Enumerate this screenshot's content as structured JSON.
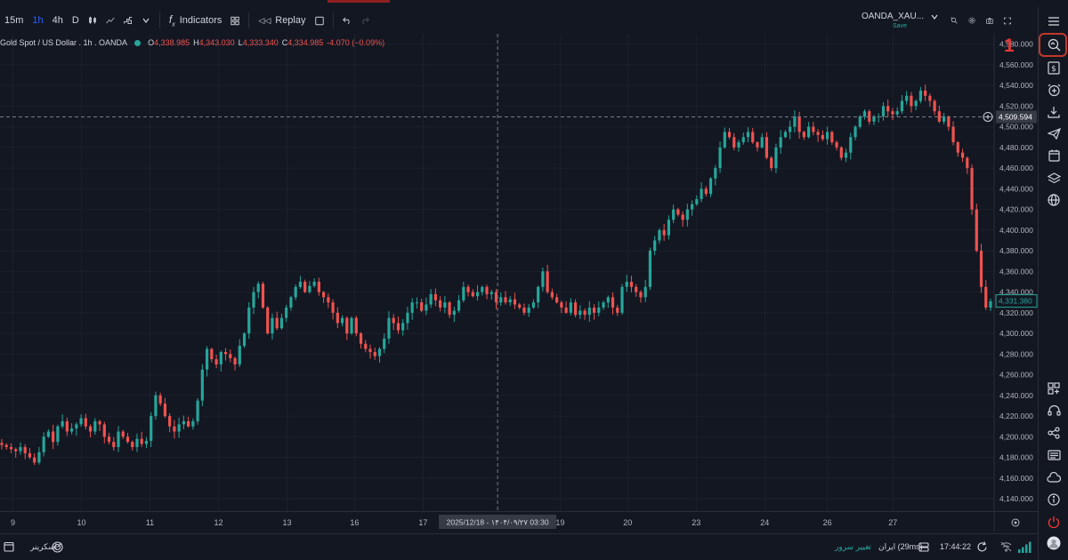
{
  "toolbar": {
    "intervals": [
      "15m",
      "1h",
      "4h",
      "D"
    ],
    "active_interval": "1h",
    "indicators_label": "Indicators",
    "replay_label": "Replay"
  },
  "symbol": {
    "name": "OANDA_XAU...",
    "save_label": "Save"
  },
  "legend": {
    "title": "Gold Spot / US Dollar . 1h . OANDA",
    "o_label": "O",
    "o_value": "4,338.985",
    "h_label": "H",
    "h_value": "4,343.030",
    "l_label": "L",
    "l_value": "4,333.340",
    "c_label": "C",
    "c_value": "4,334.985",
    "change": "-4.070 (−0.09%)"
  },
  "callout": {
    "number": "1"
  },
  "chart_data": {
    "type": "candlestick",
    "y_ticks": [
      4140,
      4160,
      4180,
      4200,
      4220,
      4240,
      4260,
      4280,
      4300,
      4320,
      4340,
      4360,
      4380,
      4400,
      4420,
      4440,
      4460,
      4480,
      4500,
      4520,
      4540,
      4560,
      4580
    ],
    "y_tick_labels": [
      "4,140.000",
      "4,160.000",
      "4,180.000",
      "4,200.000",
      "4,220.000",
      "4,240.000",
      "4,260.000",
      "4,280.000",
      "4,300.000",
      "4,320.000",
      "4,340.000",
      "4,360.000",
      "4,380.000",
      "4,400.000",
      "4,420.000",
      "4,440.000",
      "4,460.000",
      "4,480.000",
      "4,500.000",
      "4,520.000",
      "4,540.000",
      "4,560.000",
      "4,580.000"
    ],
    "ylim": [
      4128,
      4590
    ],
    "x_labels": [
      {
        "text": "9",
        "pos": 0.013
      },
      {
        "text": "10",
        "pos": 0.082
      },
      {
        "text": "11",
        "pos": 0.151
      },
      {
        "text": "12",
        "pos": 0.22
      },
      {
        "text": "13",
        "pos": 0.289
      },
      {
        "text": "16",
        "pos": 0.357
      },
      {
        "text": "17",
        "pos": 0.426
      },
      {
        "text": "19",
        "pos": 0.564
      },
      {
        "text": "20",
        "pos": 0.632
      },
      {
        "text": "23",
        "pos": 0.701
      },
      {
        "text": "24",
        "pos": 0.77
      },
      {
        "text": "26",
        "pos": 0.833
      },
      {
        "text": "27",
        "pos": 0.899
      }
    ],
    "crosshair": {
      "x_label": "2025/12/18 - ۱۴۰۴/۰۹/۲۷   03:30",
      "x_pos": 0.501,
      "y_value": 4509.594,
      "y_label": "4,509.594"
    },
    "last_price": {
      "value": 4331.38,
      "label": "4,331.380"
    },
    "up_color": "#26a69a",
    "down_color": "#ef5350",
    "closes": [
      4192,
      4190,
      4188,
      4186,
      4190,
      4184,
      4180,
      4175,
      4185,
      4200,
      4205,
      4195,
      4210,
      4215,
      4205,
      4208,
      4212,
      4218,
      4210,
      4205,
      4215,
      4212,
      4200,
      4195,
      4190,
      4205,
      4200,
      4195,
      4190,
      4198,
      4193,
      4196,
      4220,
      4240,
      4232,
      4220,
      4210,
      4205,
      4212,
      4215,
      4210,
      4215,
      4235,
      4265,
      4285,
      4275,
      4270,
      4282,
      4280,
      4276,
      4270,
      4288,
      4300,
      4325,
      4340,
      4348,
      4325,
      4300,
      4315,
      4305,
      4315,
      4325,
      4335,
      4345,
      4350,
      4340,
      4346,
      4350,
      4340,
      4335,
      4330,
      4320,
      4310,
      4315,
      4300,
      4315,
      4300,
      4290,
      4285,
      4282,
      4278,
      4285,
      4295,
      4315,
      4310,
      4303,
      4310,
      4320,
      4330,
      4330,
      4322,
      4328,
      4338,
      4332,
      4325,
      4330,
      4318,
      4322,
      4332,
      4345,
      4340,
      4336,
      4340,
      4345,
      4338,
      4340,
      4330,
      4335,
      4330,
      4333,
      4328,
      4325,
      4320,
      4325,
      4330,
      4345,
      4360,
      4340,
      4335,
      4330,
      4325,
      4320,
      4330,
      4318,
      4322,
      4318,
      4325,
      4320,
      4325,
      4330,
      4335,
      4325,
      4320,
      4345,
      4350,
      4345,
      4340,
      4335,
      4345,
      4380,
      4390,
      4400,
      4395,
      4410,
      4420,
      4415,
      4410,
      4420,
      4425,
      4430,
      4440,
      4435,
      4450,
      4460,
      4480,
      4495,
      4490,
      4480,
      4485,
      4490,
      4495,
      4485,
      4480,
      4490,
      4470,
      4460,
      4480,
      4490,
      4495,
      4500,
      4510,
      4495,
      4490,
      4500,
      4495,
      4492,
      4488,
      4495,
      4485,
      4480,
      4470,
      4475,
      4490,
      4500,
      4510,
      4515,
      4505,
      4510,
      4510,
      4520,
      4515,
      4512,
      4515,
      4525,
      4530,
      4520,
      4525,
      4535,
      4530,
      4525,
      4515,
      4505,
      4510,
      4500,
      4485,
      4475,
      4470,
      4460,
      4420,
      4380,
      4345,
      4325,
      4331
    ]
  },
  "right_toolbar": {
    "icons": [
      "menu-icon",
      "zoom-search-icon",
      "dollar-icon",
      "alarm-add-icon",
      "download-icon",
      "paper-plane-icon",
      "calendar-icon",
      "layers-icon",
      "globe-icon",
      "widgets-icon",
      "headset-icon",
      "share-icon",
      "news-icon",
      "cloud-icon",
      "info-icon",
      "power-icon",
      "user-avatar-icon"
    ]
  },
  "bottom": {
    "screener_label": "اسکرینر",
    "server_change": "تغییر سرور",
    "server_info": "ایران (29ms)",
    "time": "17:44:22"
  }
}
